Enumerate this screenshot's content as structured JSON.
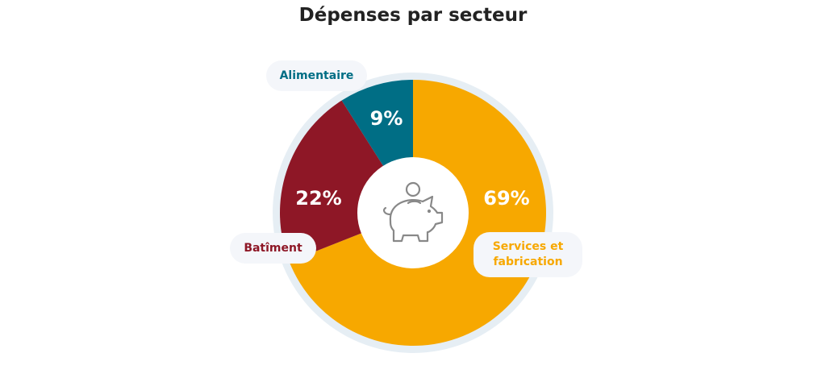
{
  "chart_data": {
    "type": "pie",
    "variant": "donut",
    "title": "Dépenses par secteur",
    "center_icon": "piggy-bank-icon",
    "slices": [
      {
        "label": "Services et fabrication",
        "value": 69,
        "value_label": "69%",
        "color": "#f7a800"
      },
      {
        "label": "Batîment",
        "value": 22,
        "value_label": "22%",
        "color": "#8e1726"
      },
      {
        "label": "Alimentaire",
        "value": 9,
        "value_label": "9%",
        "color": "#006e85"
      }
    ],
    "ring_color": "#e6eef4"
  }
}
